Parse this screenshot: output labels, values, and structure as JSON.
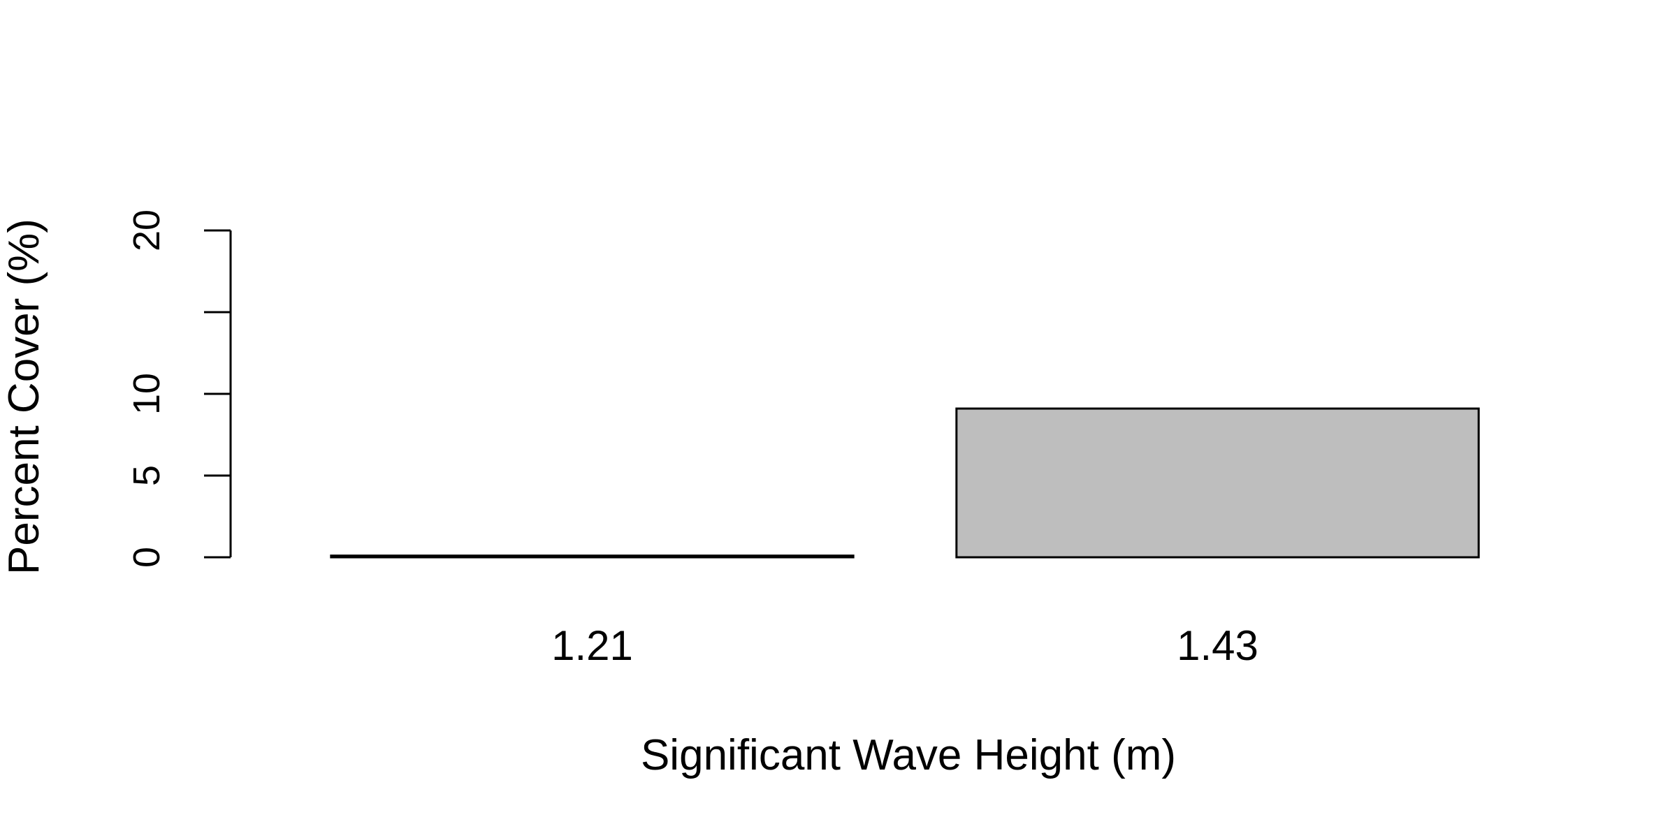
{
  "chart_data": {
    "type": "bar",
    "title": "",
    "xlabel": "Significant Wave Height (m)",
    "ylabel": "Percent Cover (%)",
    "categories": [
      "1.21",
      "1.43"
    ],
    "values": [
      0.1,
      9.1
    ],
    "ylim": [
      0,
      20
    ],
    "yticks": [
      0,
      5,
      10,
      15,
      20
    ],
    "ytick_labels": [
      "0",
      "5",
      "10",
      "",
      "20"
    ],
    "grid": false,
    "colors": {
      "bar_fill": "#bebebe",
      "bar_stroke": "#000000",
      "axis": "#000000"
    }
  }
}
